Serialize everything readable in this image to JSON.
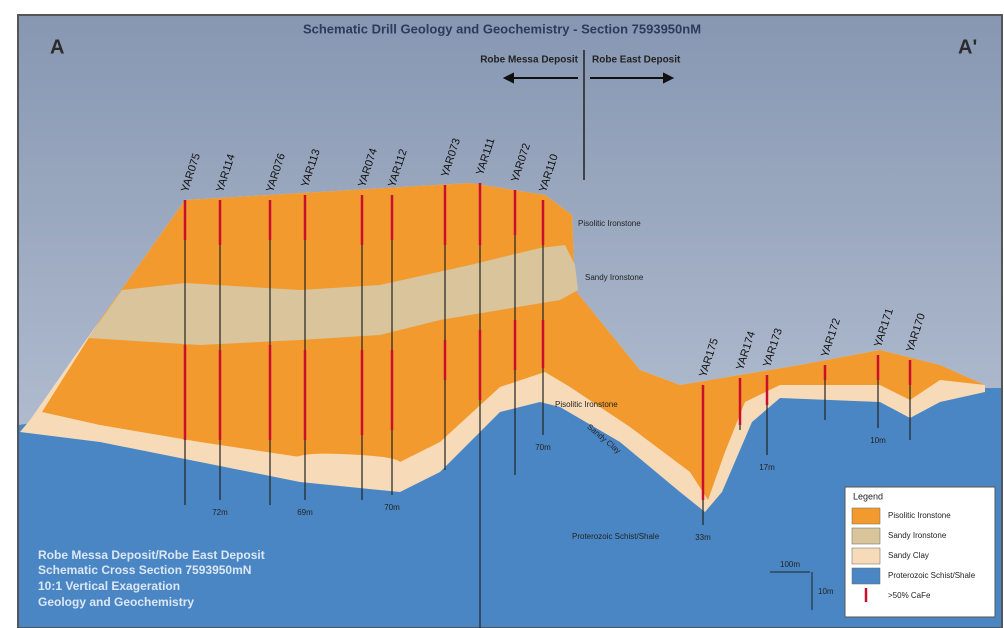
{
  "header": {
    "title": "Schematic Drill Geology and Geochemistry - Section 7593950nM",
    "left_label": "A",
    "right_label": "A'"
  },
  "deposits": {
    "west": "Robe Messa Deposit",
    "east": "Robe East Deposit"
  },
  "drill_holes": [
    {
      "label": "YAR075"
    },
    {
      "label": "YAR114",
      "depth": "72m"
    },
    {
      "label": "YAR076"
    },
    {
      "label": "YAR113",
      "depth": "69m"
    },
    {
      "label": "YAR074"
    },
    {
      "label": "YAR112",
      "depth": "70m"
    },
    {
      "label": "YAR073"
    },
    {
      "label": "YAR111"
    },
    {
      "label": "YAR072"
    },
    {
      "label": "YAR110",
      "depth": "70m"
    },
    {
      "label": "YAR175",
      "depth": "33m"
    },
    {
      "label": "YAR174"
    },
    {
      "label": "YAR173",
      "depth": "17m"
    },
    {
      "label": "YAR172"
    },
    {
      "label": "YAR171",
      "depth": "10m"
    },
    {
      "label": "YAR170"
    }
  ],
  "layers": {
    "upper_pisolitic": "Pisolitic Ironstone",
    "sandy_ironstone": "Sandy Ironstone",
    "lower_pisolitic": "Pisolitic Ironstone",
    "sandy_clay": "Sandy Clay",
    "basement": "Proterozoic Schist/Shale"
  },
  "notes": [
    "Robe Messa Deposit/Robe East Deposit",
    "Schematic Cross Section 7593950mN",
    "10:1 Vertical Exageration",
    "Geology and Geochemistry"
  ],
  "legend": {
    "title": "Legend",
    "items": [
      "Pisolitic Ironstone",
      "Sandy Ironstone",
      "Sandy Clay",
      "Proterozoic Schist/Shale",
      ">50% CaFe"
    ]
  },
  "scale": {
    "horizontal": "100m",
    "vertical": "10m"
  }
}
